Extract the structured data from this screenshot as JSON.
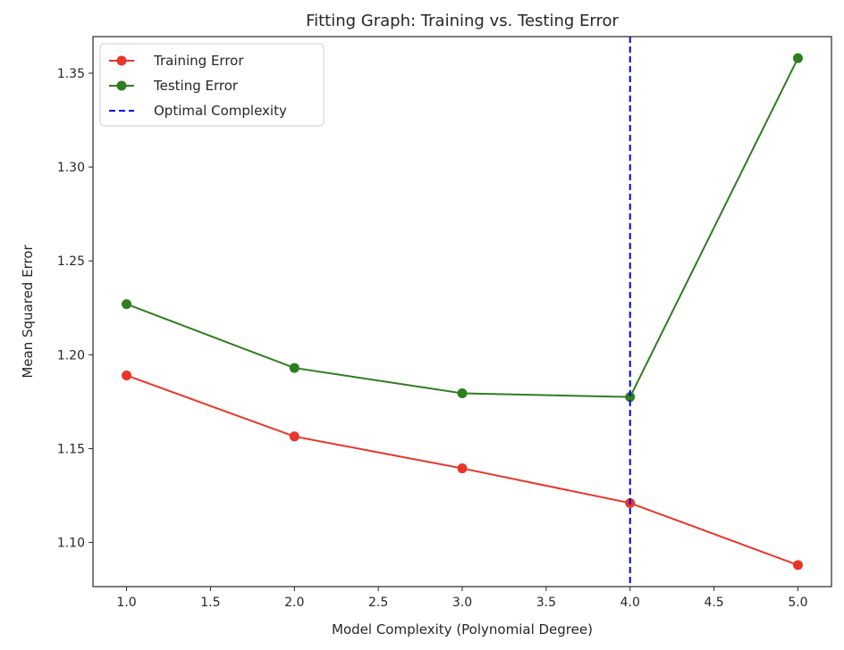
{
  "chart_data": {
    "type": "line",
    "title": "Fitting Graph: Training vs. Testing Error",
    "xlabel": "Model Complexity (Polynomial Degree)",
    "ylabel": "Mean Squared Error",
    "x": [
      1,
      2,
      3,
      4,
      5
    ],
    "xlim": [
      0.8,
      5.2
    ],
    "ylim": [
      1.0765,
      1.3695
    ],
    "xticks": [
      1.0,
      1.5,
      2.0,
      2.5,
      3.0,
      3.5,
      4.0,
      4.5,
      5.0
    ],
    "xtick_labels": [
      "1.0",
      "1.5",
      "2.0",
      "2.5",
      "3.0",
      "3.5",
      "4.0",
      "4.5",
      "5.0"
    ],
    "yticks": [
      1.1,
      1.15,
      1.2,
      1.25,
      1.3,
      1.35
    ],
    "ytick_labels": [
      "1.10",
      "1.15",
      "1.20",
      "1.25",
      "1.30",
      "1.35"
    ],
    "grid": false,
    "legend_position": "top-left",
    "series": [
      {
        "name": "Training Error",
        "color": "#e8352a",
        "marker": "circle",
        "values": [
          1.189,
          1.1565,
          1.1395,
          1.121,
          1.088
        ]
      },
      {
        "name": "Testing Error",
        "color": "#2e7d1f",
        "marker": "circle",
        "values": [
          1.227,
          1.193,
          1.1795,
          1.1775,
          1.358
        ]
      }
    ],
    "vlines": [
      {
        "name": "Optimal Complexity",
        "x": 4.0,
        "color": "#0000ee",
        "style": "dashed"
      }
    ]
  }
}
